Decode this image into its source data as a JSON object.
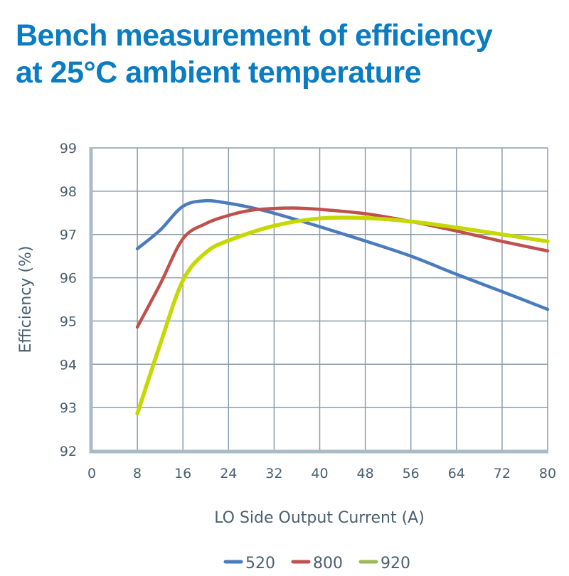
{
  "chart_data": {
    "type": "line",
    "title": "Bench measurement of efficiency at 25°C ambient temperature",
    "title_lines": [
      "Bench measurement of efficiency",
      "at 25°C ambient temperature"
    ],
    "xlabel": "LO Side Output Current (A)",
    "ylabel": "Efficiency (%)",
    "xlim": [
      0,
      80
    ],
    "ylim": [
      92,
      99
    ],
    "xticks": [
      0,
      8,
      16,
      24,
      32,
      40,
      48,
      56,
      64,
      72,
      80
    ],
    "yticks": [
      92,
      93,
      94,
      95,
      96,
      97,
      98,
      99
    ],
    "grid": true,
    "legend_position": "bottom",
    "series": [
      {
        "name": "520",
        "color": "#4a7bbd",
        "legend_color": "#4a7bbd",
        "x": [
          8,
          12,
          16,
          20,
          24,
          28,
          32,
          40,
          48,
          56,
          64,
          72,
          80
        ],
        "y": [
          96.67,
          97.1,
          97.65,
          97.78,
          97.72,
          97.62,
          97.49,
          97.18,
          96.85,
          96.5,
          96.08,
          95.68,
          95.27
        ]
      },
      {
        "name": "800",
        "color": "#c0504d",
        "legend_color": "#c0504d",
        "x": [
          8,
          12,
          16,
          20,
          24,
          28,
          32,
          36,
          40,
          48,
          56,
          64,
          72,
          80
        ],
        "y": [
          94.86,
          95.85,
          96.9,
          97.25,
          97.44,
          97.56,
          97.6,
          97.61,
          97.58,
          97.48,
          97.3,
          97.08,
          96.84,
          96.62
        ]
      },
      {
        "name": "920",
        "color": "#c5d800",
        "legend_color": "#9bbb59",
        "x": [
          8,
          12,
          16,
          20,
          24,
          32,
          40,
          48,
          56,
          64,
          72,
          80
        ],
        "y": [
          92.86,
          94.46,
          95.94,
          96.58,
          96.86,
          97.2,
          97.37,
          97.38,
          97.3,
          97.16,
          97.0,
          96.84
        ]
      }
    ]
  }
}
